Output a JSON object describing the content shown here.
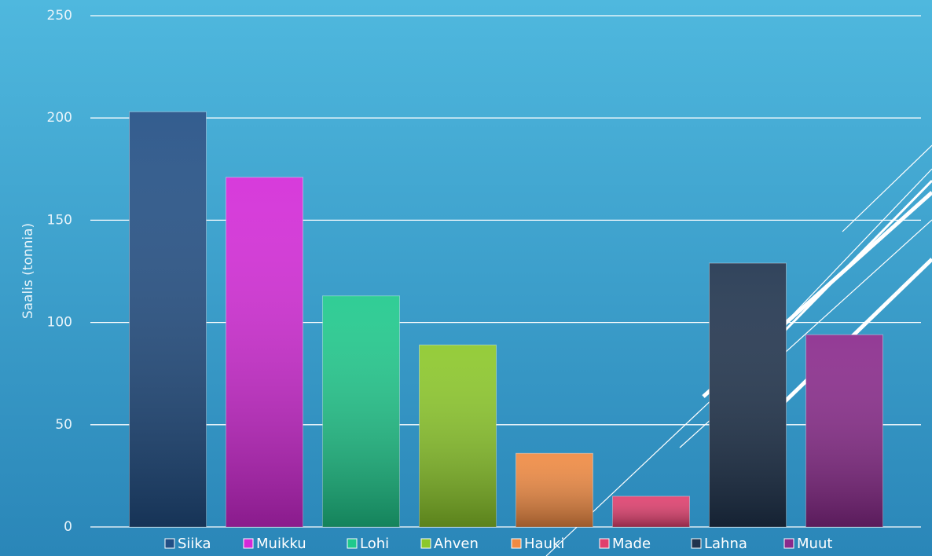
{
  "chart_data": {
    "type": "bar",
    "y_label": "Saalis (tonnia)",
    "series": [
      {
        "name": "Siika",
        "color": "#224f85",
        "values": [
          203
        ]
      },
      {
        "name": "Muikku",
        "color": "#d42ad8",
        "values": [
          171
        ]
      },
      {
        "name": "Lohi",
        "color": "#1fc98c",
        "values": [
          113
        ]
      },
      {
        "name": "Ahven",
        "color": "#8cc82a",
        "values": [
          89
        ]
      },
      {
        "name": "Hauki",
        "color": "#f08a42",
        "values": [
          36
        ]
      },
      {
        "name": "Made",
        "color": "#e03f6e",
        "values": [
          15
        ]
      },
      {
        "name": "Lahna",
        "color": "#20344e",
        "values": [
          129
        ]
      },
      {
        "name": "Muut",
        "color": "#8a2a8c",
        "values": [
          94
        ]
      }
    ],
    "ylim": [
      0,
      250
    ],
    "yticks": [
      0,
      50,
      100,
      150,
      200,
      250
    ],
    "grid": true,
    "legend": "bottom"
  }
}
